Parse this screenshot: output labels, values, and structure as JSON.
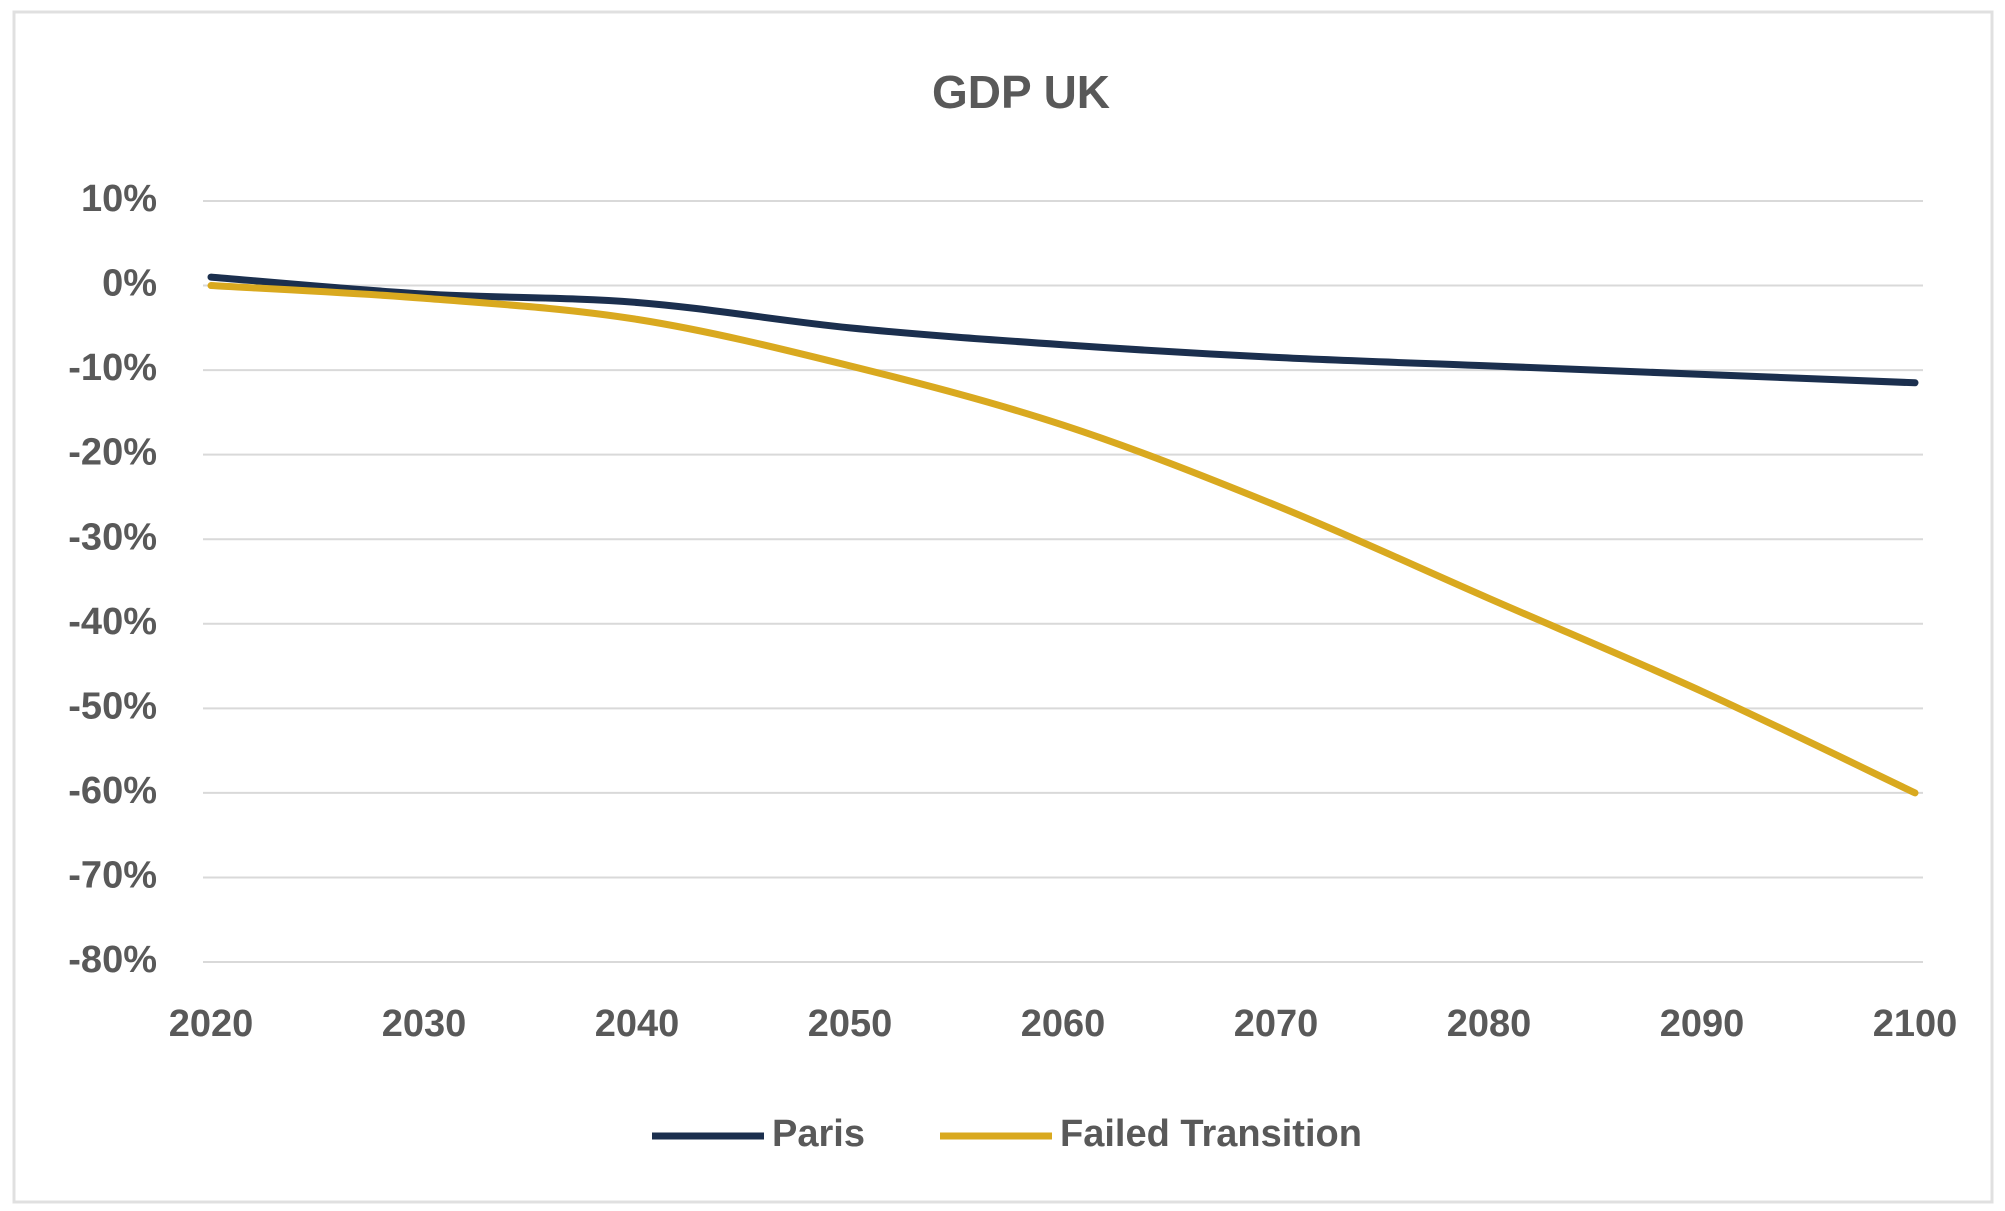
{
  "chart_data": {
    "type": "line",
    "title": "GDP UK",
    "x": [
      2020,
      2030,
      2040,
      2050,
      2060,
      2070,
      2080,
      2090,
      2100
    ],
    "series": [
      {
        "name": "Paris",
        "color": "#1b2f4e",
        "values": [
          1,
          -1,
          -2,
          -5,
          -7,
          -8.5,
          -9.5,
          -10.5,
          -11.5
        ]
      },
      {
        "name": "Failed Transition",
        "color": "#d9a91f",
        "values": [
          0,
          -1.5,
          -4,
          -9.5,
          -16.5,
          -26,
          -37,
          -48,
          -60
        ]
      }
    ],
    "xlim": [
      2020,
      2100
    ],
    "xticks": [
      2020,
      2030,
      2040,
      2050,
      2060,
      2070,
      2080,
      2090,
      2100
    ],
    "ylim": [
      -80,
      10
    ],
    "yticks": [
      {
        "value": 10,
        "label": "10%"
      },
      {
        "value": 0,
        "label": "0%"
      },
      {
        "value": -10,
        "label": "-10%"
      },
      {
        "value": -20,
        "label": "-20%"
      },
      {
        "value": -30,
        "label": "-30%"
      },
      {
        "value": -40,
        "label": "-40%"
      },
      {
        "value": -50,
        "label": "-50%"
      },
      {
        "value": -60,
        "label": "-60%"
      },
      {
        "value": -70,
        "label": "-70%"
      },
      {
        "value": -80,
        "label": "-80%"
      }
    ],
    "grid": true,
    "legend": "bottom"
  }
}
